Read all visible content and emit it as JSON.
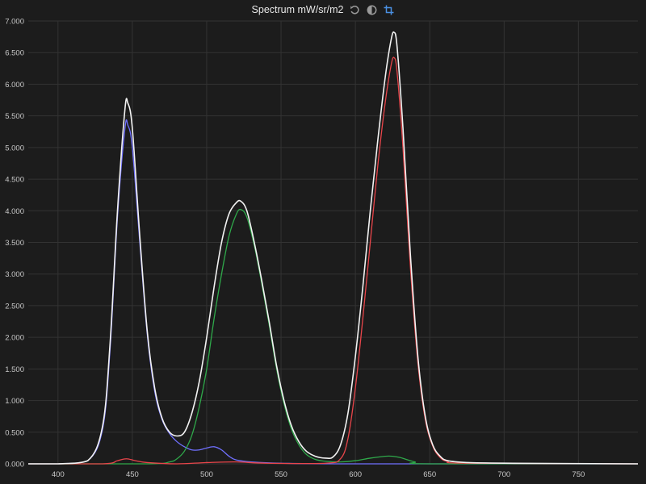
{
  "header": {
    "title": "Spectrum mW/sr/m2",
    "tools": [
      {
        "name": "reset-icon"
      },
      {
        "name": "contrast-icon"
      },
      {
        "name": "crop-icon"
      }
    ]
  },
  "colors": {
    "background": "#1c1c1c",
    "grid": "#333333",
    "white": "#f2f2f2",
    "red": "#e8454a",
    "green": "#2fa84a",
    "blue": "#6b6bff",
    "crop_icon": "#4a90e2"
  },
  "chart_data": {
    "type": "line",
    "title": "Spectrum mW/sr/m2",
    "xlabel": "",
    "ylabel": "",
    "xlim": [
      380,
      790
    ],
    "ylim": [
      0,
      7
    ],
    "grid": true,
    "x_ticks": [
      "400",
      "450",
      "500",
      "550",
      "600",
      "650",
      "700",
      "750"
    ],
    "y_ticks": [
      "0.000",
      "0.500",
      "1.000",
      "1.500",
      "2.000",
      "2.500",
      "3.000",
      "3.500",
      "4.000",
      "4.500",
      "5.000",
      "5.500",
      "6.000",
      "6.500",
      "7.000"
    ],
    "series": [
      {
        "color": "#f2f2f2",
        "points": [
          [
            380,
            0.0
          ],
          [
            400,
            0.0
          ],
          [
            420,
            0.05
          ],
          [
            430,
            0.6
          ],
          [
            435,
            1.9
          ],
          [
            440,
            4.0
          ],
          [
            445,
            5.6
          ],
          [
            447,
            5.7
          ],
          [
            450,
            5.3
          ],
          [
            455,
            3.6
          ],
          [
            460,
            2.1
          ],
          [
            465,
            1.2
          ],
          [
            470,
            0.72
          ],
          [
            475,
            0.5
          ],
          [
            480,
            0.44
          ],
          [
            485,
            0.5
          ],
          [
            490,
            0.8
          ],
          [
            495,
            1.3
          ],
          [
            500,
            2.0
          ],
          [
            505,
            2.8
          ],
          [
            510,
            3.5
          ],
          [
            515,
            3.95
          ],
          [
            520,
            4.13
          ],
          [
            523,
            4.15
          ],
          [
            527,
            4.0
          ],
          [
            532,
            3.5
          ],
          [
            537,
            2.9
          ],
          [
            542,
            2.25
          ],
          [
            547,
            1.55
          ],
          [
            552,
            1.0
          ],
          [
            557,
            0.6
          ],
          [
            562,
            0.35
          ],
          [
            567,
            0.2
          ],
          [
            573,
            0.12
          ],
          [
            580,
            0.09
          ],
          [
            585,
            0.11
          ],
          [
            590,
            0.3
          ],
          [
            595,
            0.8
          ],
          [
            600,
            1.7
          ],
          [
            605,
            2.8
          ],
          [
            610,
            4.0
          ],
          [
            615,
            5.1
          ],
          [
            620,
            6.1
          ],
          [
            624,
            6.7
          ],
          [
            626,
            6.82
          ],
          [
            628,
            6.6
          ],
          [
            632,
            5.3
          ],
          [
            637,
            3.3
          ],
          [
            642,
            1.7
          ],
          [
            647,
            0.75
          ],
          [
            652,
            0.3
          ],
          [
            657,
            0.12
          ],
          [
            662,
            0.05
          ],
          [
            675,
            0.02
          ],
          [
            700,
            0.01
          ],
          [
            790,
            0.0
          ]
        ]
      },
      {
        "color": "#7070ff",
        "points": [
          [
            380,
            0.0
          ],
          [
            400,
            0.0
          ],
          [
            420,
            0.05
          ],
          [
            430,
            0.55
          ],
          [
            435,
            1.8
          ],
          [
            440,
            3.9
          ],
          [
            445,
            5.3
          ],
          [
            447,
            5.35
          ],
          [
            450,
            5.0
          ],
          [
            455,
            3.5
          ],
          [
            460,
            2.05
          ],
          [
            465,
            1.15
          ],
          [
            470,
            0.7
          ],
          [
            475,
            0.48
          ],
          [
            480,
            0.35
          ],
          [
            485,
            0.27
          ],
          [
            490,
            0.22
          ],
          [
            495,
            0.22
          ],
          [
            500,
            0.25
          ],
          [
            505,
            0.27
          ],
          [
            510,
            0.22
          ],
          [
            515,
            0.12
          ],
          [
            520,
            0.06
          ],
          [
            530,
            0.03
          ],
          [
            550,
            0.01
          ],
          [
            600,
            0.0
          ],
          [
            790,
            0.0
          ]
        ]
      },
      {
        "color": "#2fa84a",
        "points": [
          [
            380,
            0.0
          ],
          [
            460,
            0.0
          ],
          [
            475,
            0.03
          ],
          [
            480,
            0.08
          ],
          [
            485,
            0.2
          ],
          [
            490,
            0.45
          ],
          [
            495,
            0.9
          ],
          [
            500,
            1.5
          ],
          [
            505,
            2.3
          ],
          [
            510,
            3.0
          ],
          [
            515,
            3.6
          ],
          [
            520,
            3.95
          ],
          [
            523,
            4.02
          ],
          [
            527,
            3.9
          ],
          [
            532,
            3.45
          ],
          [
            537,
            2.85
          ],
          [
            542,
            2.2
          ],
          [
            547,
            1.5
          ],
          [
            552,
            0.95
          ],
          [
            557,
            0.55
          ],
          [
            562,
            0.3
          ],
          [
            567,
            0.15
          ],
          [
            573,
            0.07
          ],
          [
            580,
            0.04
          ],
          [
            590,
            0.03
          ],
          [
            600,
            0.05
          ],
          [
            610,
            0.09
          ],
          [
            620,
            0.12
          ],
          [
            625,
            0.12
          ],
          [
            630,
            0.1
          ],
          [
            640,
            0.03
          ],
          [
            650,
            0.0
          ],
          [
            790,
            0.0
          ]
        ]
      },
      {
        "color": "#e8454a",
        "points": [
          [
            380,
            0.0
          ],
          [
            430,
            0.0
          ],
          [
            440,
            0.05
          ],
          [
            446,
            0.08
          ],
          [
            452,
            0.05
          ],
          [
            460,
            0.02
          ],
          [
            480,
            0.0
          ],
          [
            500,
            0.02
          ],
          [
            520,
            0.03
          ],
          [
            540,
            0.01
          ],
          [
            580,
            0.01
          ],
          [
            590,
            0.08
          ],
          [
            595,
            0.4
          ],
          [
            600,
            1.2
          ],
          [
            605,
            2.3
          ],
          [
            610,
            3.5
          ],
          [
            615,
            4.7
          ],
          [
            620,
            5.7
          ],
          [
            624,
            6.3
          ],
          [
            626,
            6.42
          ],
          [
            628,
            6.2
          ],
          [
            632,
            5.0
          ],
          [
            637,
            3.1
          ],
          [
            642,
            1.6
          ],
          [
            647,
            0.7
          ],
          [
            652,
            0.28
          ],
          [
            657,
            0.1
          ],
          [
            662,
            0.04
          ],
          [
            675,
            0.01
          ],
          [
            790,
            0.0
          ]
        ]
      }
    ]
  }
}
